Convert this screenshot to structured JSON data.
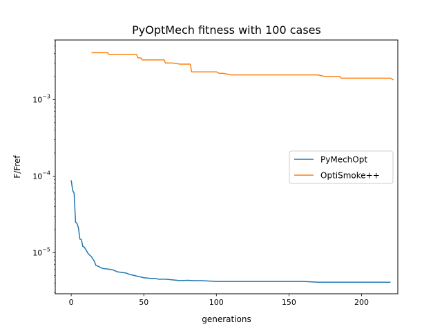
{
  "chart_data": {
    "type": "line",
    "title": "PyOptMech fitness with 100 cases",
    "xlabel": "generations",
    "ylabel": "F/Fref",
    "xlim": [
      -11,
      225
    ],
    "ylim": [
      2.9e-06,
      0.006
    ],
    "yscale": "log",
    "grid": false,
    "legend_position": "center-right",
    "x_ticks": [
      0,
      50,
      100,
      150,
      200
    ],
    "y_ticks": [
      {
        "value": 1e-05,
        "base": "10",
        "exp": "−5"
      },
      {
        "value": 0.0001,
        "base": "10",
        "exp": "−4"
      },
      {
        "value": 0.001,
        "base": "10",
        "exp": "−3"
      }
    ],
    "series": [
      {
        "name": "PyMechOpt",
        "color": "#1f77b4",
        "x": [
          0,
          1,
          2,
          3,
          4,
          5,
          6,
          7,
          8,
          9,
          10,
          12,
          13,
          14,
          15,
          16,
          17,
          18,
          19,
          20,
          22,
          25,
          28,
          30,
          32,
          35,
          38,
          40,
          42,
          44,
          46,
          48,
          50,
          55,
          58,
          60,
          65,
          70,
          75,
          80,
          85,
          90,
          100,
          110,
          120,
          130,
          140,
          150,
          160,
          170,
          180,
          190,
          200,
          210,
          220
        ],
        "y": [
          8.8e-05,
          6.5e-05,
          6e-05,
          2.5e-05,
          2.4e-05,
          2.1e-05,
          1.5e-05,
          1.48e-05,
          1.2e-05,
          1.18e-05,
          1.1e-05,
          9.5e-06,
          9.2e-06,
          8.8e-06,
          8.2e-06,
          7.7e-06,
          6.8e-06,
          6.7e-06,
          6.6e-06,
          6.4e-06,
          6.2e-06,
          6.1e-06,
          6e-06,
          5.8e-06,
          5.6e-06,
          5.5e-06,
          5.4e-06,
          5.2e-06,
          5.1e-06,
          5e-06,
          4.9e-06,
          4.8e-06,
          4.7e-06,
          4.6e-06,
          4.6e-06,
          4.5e-06,
          4.5e-06,
          4.4e-06,
          4.3e-06,
          4.35e-06,
          4.3e-06,
          4.3e-06,
          4.2e-06,
          4.2e-06,
          4.2e-06,
          4.2e-06,
          4.2e-06,
          4.2e-06,
          4.2e-06,
          4.1e-06,
          4.1e-06,
          4.1e-06,
          4.1e-06,
          4.1e-06,
          4.1e-06
        ]
      },
      {
        "name": "OptiSmoke++",
        "color": "#ff7f0e",
        "x": [
          14,
          20,
          25,
          26,
          28,
          35,
          45,
          46,
          47,
          48,
          49,
          50,
          55,
          60,
          64,
          65,
          70,
          75,
          80,
          82,
          83,
          85,
          90,
          100,
          102,
          105,
          110,
          120,
          130,
          135,
          140,
          150,
          160,
          170,
          175,
          185,
          186,
          190,
          195,
          200,
          210,
          220,
          222
        ],
        "y": [
          0.0041,
          0.0041,
          0.0041,
          0.0039,
          0.0039,
          0.0039,
          0.0039,
          0.0035,
          0.0035,
          0.0035,
          0.0033,
          0.0033,
          0.0033,
          0.0033,
          0.0033,
          0.003,
          0.003,
          0.0029,
          0.0029,
          0.0029,
          0.0023,
          0.0023,
          0.0023,
          0.0023,
          0.0022,
          0.0022,
          0.0021,
          0.0021,
          0.0021,
          0.0021,
          0.0021,
          0.0021,
          0.0021,
          0.0021,
          0.002,
          0.002,
          0.0019,
          0.0019,
          0.0019,
          0.0019,
          0.0019,
          0.0019,
          0.0018
        ]
      }
    ]
  }
}
